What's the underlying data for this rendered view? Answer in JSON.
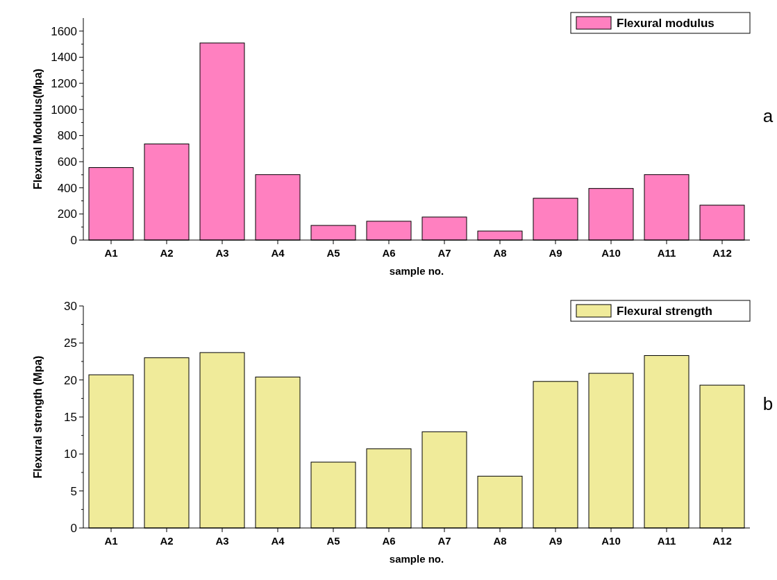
{
  "chart_data": [
    {
      "type": "bar",
      "xlabel": "sample no.",
      "ylabel": "Flexural Modulus(Mpa)",
      "categories": [
        "A1",
        "A2",
        "A3",
        "A4",
        "A5",
        "A6",
        "A7",
        "A8",
        "A9",
        "A10",
        "A11",
        "A12"
      ],
      "series": [
        {
          "name": "Flexural modulus",
          "color": "#ff80c0",
          "values": [
            555,
            736,
            1509,
            501,
            112,
            144,
            176,
            69,
            320,
            395,
            501,
            267
          ]
        }
      ],
      "ylim": [
        0,
        1700
      ],
      "yticks": [
        0,
        200,
        400,
        600,
        800,
        1000,
        1200,
        1400,
        1600
      ],
      "legend": "top right",
      "grid": false,
      "annotations": [
        "a"
      ]
    },
    {
      "type": "bar",
      "xlabel": "sample no.",
      "ylabel": "Flexural strength (Mpa)",
      "categories": [
        "A1",
        "A2",
        "A3",
        "A4",
        "A5",
        "A6",
        "A7",
        "A8",
        "A9",
        "A10",
        "A11",
        "A12"
      ],
      "series": [
        {
          "name": "Flexural strength",
          "color": "#f0eb9a",
          "values": [
            20.7,
            23.0,
            23.7,
            20.4,
            8.9,
            10.7,
            13.0,
            7.0,
            19.8,
            20.9,
            23.3,
            19.3
          ]
        }
      ],
      "ylim": [
        0,
        30
      ],
      "yticks": [
        0,
        5,
        10,
        15,
        20,
        25,
        30
      ],
      "legend": "top right",
      "grid": false,
      "annotations": [
        "b"
      ]
    }
  ]
}
